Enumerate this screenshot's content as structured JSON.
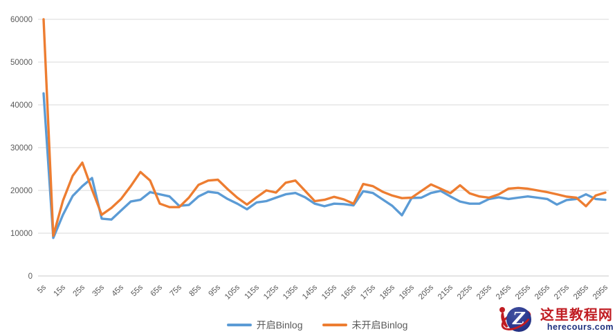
{
  "chart_data": {
    "type": "line",
    "title": "",
    "xlabel": "",
    "ylabel": "",
    "ylim": [
      0,
      60000
    ],
    "y_ticks": [
      0,
      10000,
      20000,
      30000,
      40000,
      50000,
      60000
    ],
    "grid": true,
    "legend_position": "bottom",
    "x_label_interval": 2,
    "x_categories": [
      "5s",
      "10s",
      "15s",
      "20s",
      "25s",
      "30s",
      "35s",
      "40s",
      "45s",
      "50s",
      "55s",
      "60s",
      "65s",
      "70s",
      "75s",
      "80s",
      "85s",
      "90s",
      "95s",
      "100s",
      "105s",
      "110s",
      "115s",
      "120s",
      "125s",
      "130s",
      "135s",
      "140s",
      "145s",
      "150s",
      "155s",
      "160s",
      "165s",
      "170s",
      "175s",
      "180s",
      "185s",
      "190s",
      "195s",
      "200s",
      "205s",
      "210s",
      "215s",
      "220s",
      "225s",
      "230s",
      "235s",
      "240s",
      "245s",
      "250s",
      "255s",
      "260s",
      "265s",
      "270s",
      "275s",
      "280s",
      "285s",
      "290s",
      "295s"
    ],
    "x_axis_labels_shown": [
      "5s",
      "15s",
      "25s",
      "35s",
      "45s",
      "55s",
      "65s",
      "75s",
      "85s",
      "95s",
      "105s",
      "115s",
      "125s",
      "135s",
      "145s",
      "155s",
      "165s",
      "175s",
      "185s",
      "195s",
      "205s",
      "215s",
      "225s",
      "235s",
      "245s",
      "255s",
      "265s",
      "275s",
      "285s",
      "295s"
    ],
    "series": [
      {
        "name": "开启Binlog",
        "color": "#5B9BD5",
        "values": [
          42700,
          8900,
          14300,
          18700,
          21000,
          22900,
          13400,
          13200,
          15300,
          17400,
          17800,
          19600,
          19100,
          18600,
          16400,
          16600,
          18600,
          19700,
          19400,
          18000,
          16900,
          15600,
          17200,
          17500,
          18300,
          19100,
          19400,
          18400,
          16900,
          16300,
          16900,
          16800,
          16500,
          19800,
          19400,
          17900,
          16400,
          14200,
          18250,
          18300,
          19400,
          19900,
          18600,
          17400,
          16900,
          16900,
          18000,
          18400,
          18000,
          18300,
          18600,
          18300,
          18000,
          16700,
          17750,
          18000,
          19100,
          18000,
          17800
        ]
      },
      {
        "name": "未开启Binlog",
        "color": "#ED7D31",
        "values": [
          60000,
          9400,
          17600,
          23400,
          26500,
          20200,
          14300,
          15900,
          18000,
          21000,
          24300,
          22300,
          16900,
          16100,
          16100,
          18300,
          21300,
          22300,
          22500,
          20300,
          18300,
          16700,
          18400,
          20000,
          19500,
          21800,
          22300,
          19900,
          17500,
          17800,
          18500,
          17900,
          16900,
          21500,
          21000,
          19700,
          18800,
          18200,
          18300,
          19850,
          21400,
          20400,
          19350,
          21200,
          19300,
          18600,
          18300,
          19100,
          20400,
          20600,
          20400,
          20000,
          19600,
          19100,
          18550,
          18300,
          16300,
          18800,
          19500
        ]
      }
    ]
  },
  "axis_style": {
    "grid_color": "#D9D9D9",
    "baseline_color": "#C9C9C9",
    "tick_text_color": "#595959"
  },
  "legend": {
    "items": [
      {
        "label": "开启Binlog",
        "color": "#5B9BD5"
      },
      {
        "label": "未开启Binlog",
        "color": "#ED7D31"
      }
    ]
  },
  "watermark": {
    "title": "这里教程网",
    "domain": "herecours.com",
    "logo_letter": "Z",
    "red": "#c01c22",
    "navy": "#1c2f7e"
  }
}
